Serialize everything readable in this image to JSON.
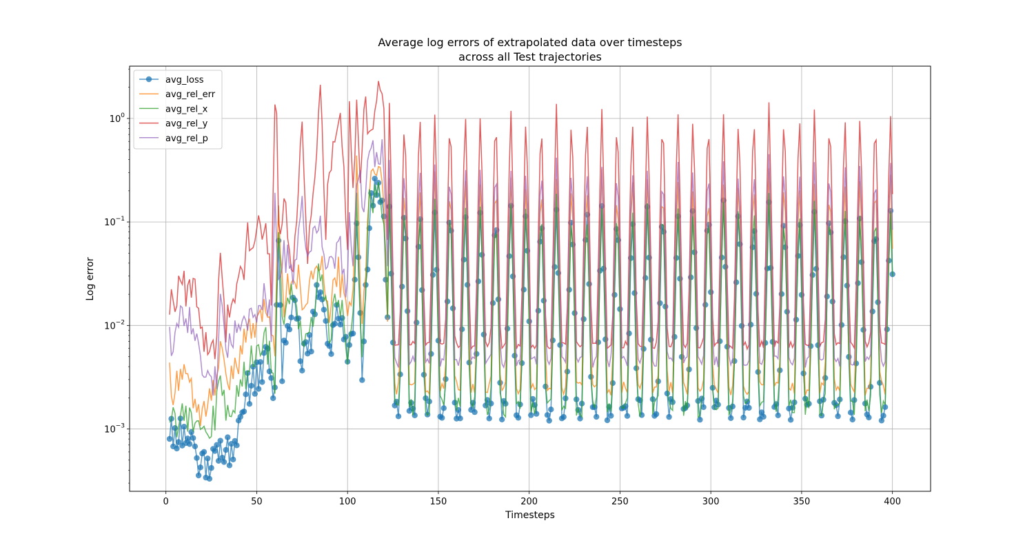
{
  "chart_data": {
    "type": "line",
    "title_line1": "Average log errors of extrapolated data over timesteps",
    "title_line2": "across all Test trajectories",
    "xlabel": "Timesteps",
    "ylabel": "Log error",
    "yscale": "log",
    "grid": true,
    "legend_placement": "top-left",
    "xlim": [
      -20,
      421
    ],
    "ylim": [
      0.00025,
      3.2
    ],
    "x_ticks": [
      0,
      50,
      100,
      150,
      200,
      250,
      300,
      350,
      400
    ],
    "x_tick_labels": [
      "0",
      "50",
      "100",
      "150",
      "200",
      "250",
      "300",
      "350",
      "400"
    ],
    "y_ticks": [
      0.001,
      0.01,
      0.1,
      1
    ],
    "y_tick_bases": [
      "10",
      "10",
      "10",
      "10"
    ],
    "y_tick_exponents": [
      "−3",
      "−2",
      "−1",
      "0"
    ],
    "x_start": 2,
    "x_end": 400,
    "series": [
      {
        "name": "avg_loss",
        "color": "#1f77b4",
        "markers": true,
        "keypoints": [
          [
            2,
            0.0009
          ],
          [
            10,
            0.001
          ],
          [
            19,
            0.0004
          ],
          [
            22,
            0.00042
          ],
          [
            30,
            0.0007
          ],
          [
            35,
            0.0006
          ],
          [
            40,
            0.001
          ],
          [
            45,
            0.0025
          ],
          [
            50,
            0.003
          ],
          [
            55,
            0.005
          ],
          [
            60,
            0.002
          ],
          [
            62,
            0.075
          ],
          [
            64,
            0.004
          ],
          [
            70,
            0.02
          ],
          [
            75,
            0.005
          ],
          [
            80,
            0.007
          ],
          [
            85,
            0.03
          ],
          [
            90,
            0.006
          ],
          [
            95,
            0.015
          ],
          [
            100,
            0.004
          ],
          [
            103,
            0.008
          ],
          [
            105,
            0.13
          ],
          [
            108,
            0.003
          ],
          [
            112,
            0.12
          ],
          [
            116,
            0.21
          ],
          [
            120,
            0.11
          ],
          [
            123,
            0.004
          ]
        ],
        "cycle": {
          "start": 123,
          "period": 8.36,
          "peak": 0.16,
          "peak_var": 0.03,
          "trough": 0.0016,
          "trough_var": 0.0004
        }
      },
      {
        "name": "avg_rel_err",
        "color": "#ff7f0e",
        "markers": false,
        "keypoints": [
          [
            2,
            0.003
          ],
          [
            5,
            0.0023
          ],
          [
            10,
            0.0033
          ],
          [
            15,
            0.0022
          ],
          [
            20,
            0.0013
          ],
          [
            25,
            0.0018
          ],
          [
            30,
            0.006
          ],
          [
            35,
            0.003
          ],
          [
            40,
            0.005
          ],
          [
            45,
            0.008
          ],
          [
            50,
            0.011
          ],
          [
            55,
            0.015
          ],
          [
            60,
            0.006
          ],
          [
            62,
            0.12
          ],
          [
            65,
            0.015
          ],
          [
            70,
            0.04
          ],
          [
            75,
            0.02
          ],
          [
            80,
            0.025
          ],
          [
            85,
            0.05
          ],
          [
            90,
            0.015
          ],
          [
            95,
            0.035
          ],
          [
            100,
            0.01
          ],
          [
            103,
            0.03
          ],
          [
            105,
            0.33
          ],
          [
            108,
            0.008
          ],
          [
            112,
            0.25
          ],
          [
            116,
            0.35
          ],
          [
            120,
            0.15
          ],
          [
            123,
            0.005
          ]
        ],
        "cycle": {
          "start": 123,
          "period": 8.36,
          "peak": 0.3,
          "peak_var": 0.05,
          "trough": 0.0025,
          "trough_var": 0.0004
        }
      },
      {
        "name": "avg_rel_x",
        "color": "#2ca02c",
        "markers": false,
        "keypoints": [
          [
            2,
            0.0016
          ],
          [
            5,
            0.0011
          ],
          [
            10,
            0.0015
          ],
          [
            15,
            0.0011
          ],
          [
            20,
            0.0008
          ],
          [
            25,
            0.001
          ],
          [
            30,
            0.0025
          ],
          [
            35,
            0.0012
          ],
          [
            40,
            0.002
          ],
          [
            45,
            0.004
          ],
          [
            50,
            0.005
          ],
          [
            55,
            0.007
          ],
          [
            60,
            0.003
          ],
          [
            62,
            0.09
          ],
          [
            65,
            0.008
          ],
          [
            70,
            0.025
          ],
          [
            75,
            0.008
          ],
          [
            80,
            0.01
          ],
          [
            85,
            0.035
          ],
          [
            90,
            0.008
          ],
          [
            95,
            0.02
          ],
          [
            100,
            0.006
          ],
          [
            103,
            0.012
          ],
          [
            105,
            0.16
          ],
          [
            108,
            0.004
          ],
          [
            112,
            0.14
          ],
          [
            116,
            0.22
          ],
          [
            120,
            0.13
          ],
          [
            123,
            0.004
          ]
        ],
        "cycle": {
          "start": 123,
          "period": 8.36,
          "peak": 0.17,
          "peak_var": 0.03,
          "trough": 0.0017,
          "trough_var": 0.0004
        }
      },
      {
        "name": "avg_rel_y",
        "color": "#d62728",
        "markers": false,
        "keypoints": [
          [
            2,
            0.018
          ],
          [
            5,
            0.015
          ],
          [
            8,
            0.026
          ],
          [
            12,
            0.02
          ],
          [
            16,
            0.02
          ],
          [
            20,
            0.007
          ],
          [
            25,
            0.007
          ],
          [
            28,
            0.006
          ],
          [
            30,
            0.058
          ],
          [
            33,
            0.01
          ],
          [
            37,
            0.015
          ],
          [
            42,
            0.03
          ],
          [
            45,
            0.07
          ],
          [
            50,
            0.08
          ],
          [
            55,
            0.1
          ],
          [
            58,
            0.02
          ],
          [
            60,
            1.2
          ],
          [
            61,
            1.6
          ],
          [
            62,
            0.08
          ],
          [
            65,
            0.15
          ],
          [
            70,
            0.03
          ],
          [
            75,
            1.0
          ],
          [
            78,
            0.05
          ],
          [
            82,
            0.25
          ],
          [
            85,
            1.5
          ],
          [
            88,
            0.1
          ],
          [
            92,
            0.6
          ],
          [
            96,
            0.8
          ],
          [
            100,
            0.07
          ],
          [
            101,
            2.0
          ],
          [
            103,
            0.15
          ],
          [
            105,
            1.5
          ],
          [
            107,
            0.18
          ],
          [
            109,
            1.6
          ],
          [
            112,
            0.6
          ],
          [
            116,
            1.9
          ],
          [
            120,
            1.4
          ],
          [
            123,
            0.012
          ]
        ],
        "cycle": {
          "start": 123,
          "period": 8.36,
          "peak": 1.35,
          "peak_var": 0.15,
          "trough": 0.0065,
          "trough_var": 0.0006
        }
      },
      {
        "name": "avg_rel_p",
        "color": "#9467bd",
        "markers": false,
        "keypoints": [
          [
            2,
            0.0075
          ],
          [
            5,
            0.007
          ],
          [
            8,
            0.011
          ],
          [
            12,
            0.012
          ],
          [
            16,
            0.009
          ],
          [
            20,
            0.004
          ],
          [
            25,
            0.003
          ],
          [
            28,
            0.003
          ],
          [
            30,
            0.023
          ],
          [
            33,
            0.005
          ],
          [
            37,
            0.007
          ],
          [
            42,
            0.011
          ],
          [
            45,
            0.013
          ],
          [
            50,
            0.015
          ],
          [
            55,
            0.02
          ],
          [
            58,
            0.01
          ],
          [
            60,
            0.25
          ],
          [
            62,
            0.03
          ],
          [
            65,
            0.05
          ],
          [
            70,
            0.03
          ],
          [
            75,
            0.13
          ],
          [
            78,
            0.05
          ],
          [
            82,
            0.1
          ],
          [
            85,
            0.1
          ],
          [
            88,
            0.03
          ],
          [
            92,
            0.05
          ],
          [
            96,
            0.06
          ],
          [
            100,
            0.02
          ],
          [
            101,
            0.12
          ],
          [
            103,
            0.05
          ],
          [
            105,
            0.3
          ],
          [
            109,
            0.15
          ],
          [
            112,
            0.35
          ],
          [
            116,
            0.55
          ],
          [
            120,
            0.4
          ],
          [
            123,
            0.01
          ]
        ],
        "cycle": {
          "start": 123,
          "period": 8.36,
          "peak": 0.42,
          "peak_var": 0.06,
          "trough": 0.0045,
          "trough_var": 0.0006
        }
      }
    ]
  }
}
